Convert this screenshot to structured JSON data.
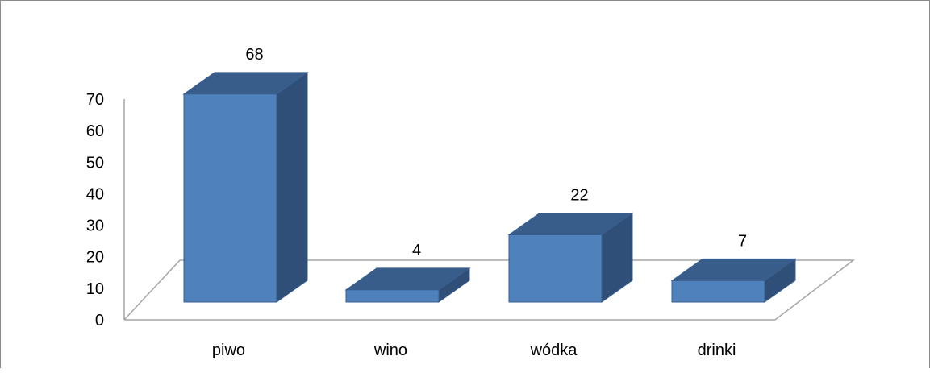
{
  "chart_data": {
    "type": "bar",
    "categories": [
      "piwo",
      "wino",
      "wódka",
      "drinki"
    ],
    "values": [
      68,
      4,
      22,
      7
    ],
    "data_labels": [
      "68",
      "4",
      "22",
      "7"
    ],
    "title": "",
    "xlabel": "",
    "ylabel": "",
    "ylim": [
      0,
      70
    ],
    "yticks": [
      0,
      10,
      20,
      30,
      40,
      50,
      60,
      70
    ],
    "style": "3d-column",
    "grid": false,
    "legend": "none",
    "colors": {
      "bar_front": "#4f81bd",
      "bar_top": "#385d8a",
      "bar_side": "#2f4f79",
      "bar_edge": "#3a5f8f",
      "axis": "#a6a6a6",
      "text": "#000000"
    }
  }
}
